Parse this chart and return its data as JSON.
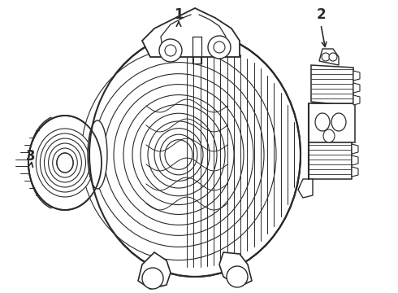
{
  "background_color": "#ffffff",
  "line_color": "#2a2a2a",
  "line_width": 1.0,
  "labels": [
    "1",
    "2",
    "3"
  ],
  "label_fontsize": 12,
  "label_fontweight": "bold"
}
